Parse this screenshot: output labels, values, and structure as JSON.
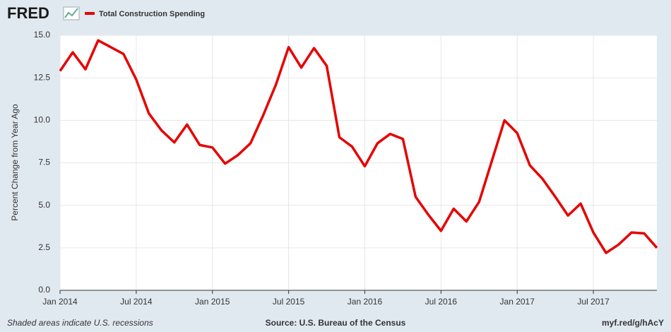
{
  "chart_data": {
    "type": "line",
    "brand": "FRED",
    "y_label": "Percent Change from Year Ago",
    "note": "Shaded areas indicate U.S. recessions",
    "source": "Source: U.S. Bureau of the Census",
    "link": "myf.red/g/hAcY",
    "x": [
      "2014-01",
      "2014-02",
      "2014-03",
      "2014-04",
      "2014-05",
      "2014-06",
      "2014-07",
      "2014-08",
      "2014-09",
      "2014-10",
      "2014-11",
      "2014-12",
      "2015-01",
      "2015-02",
      "2015-03",
      "2015-04",
      "2015-05",
      "2015-06",
      "2015-07",
      "2015-08",
      "2015-09",
      "2015-10",
      "2015-11",
      "2015-12",
      "2016-01",
      "2016-02",
      "2016-03",
      "2016-04",
      "2016-05",
      "2016-06",
      "2016-07",
      "2016-08",
      "2016-09",
      "2016-10",
      "2016-11",
      "2016-12",
      "2017-01",
      "2017-02",
      "2017-03",
      "2017-04",
      "2017-05",
      "2017-06",
      "2017-07",
      "2017-08",
      "2017-09",
      "2017-10",
      "2017-11",
      "2017-12"
    ],
    "series": [
      {
        "name": "Total Construction Spending",
        "color": "#e60000",
        "values": [
          12.9,
          14.0,
          13.0,
          14.7,
          14.3,
          13.9,
          12.4,
          10.4,
          9.4,
          8.7,
          9.75,
          8.55,
          8.4,
          7.45,
          7.95,
          8.65,
          10.3,
          12.1,
          14.3,
          13.1,
          14.25,
          13.2,
          9.0,
          8.45,
          7.3,
          8.65,
          9.2,
          8.9,
          5.5,
          4.45,
          3.5,
          4.8,
          4.05,
          5.2,
          7.6,
          10.0,
          9.25,
          7.35,
          6.55,
          5.5,
          4.4,
          5.1,
          3.4,
          2.2,
          2.7,
          3.4,
          3.35,
          2.5
        ]
      }
    ],
    "xlim": [
      "2014-01",
      "2017-12"
    ],
    "xticks": [
      {
        "value": "2014-01",
        "label": "Jan 2014"
      },
      {
        "value": "2014-07",
        "label": "Jul 2014"
      },
      {
        "value": "2015-01",
        "label": "Jan 2015"
      },
      {
        "value": "2015-07",
        "label": "Jul 2015"
      },
      {
        "value": "2016-01",
        "label": "Jan 2016"
      },
      {
        "value": "2016-07",
        "label": "Jul 2016"
      },
      {
        "value": "2017-01",
        "label": "Jan 2017"
      },
      {
        "value": "2017-07",
        "label": "Jul 2017"
      }
    ],
    "ylim": [
      0,
      15
    ],
    "yticks": [
      {
        "value": 0,
        "label": "0.0"
      },
      {
        "value": 2.5,
        "label": "2.5"
      },
      {
        "value": 5,
        "label": "5.0"
      },
      {
        "value": 7.5,
        "label": "7.5"
      },
      {
        "value": 10,
        "label": "10.0"
      },
      {
        "value": 12.5,
        "label": "12.5"
      },
      {
        "value": 15,
        "label": "15.0"
      }
    ],
    "grid": true
  }
}
